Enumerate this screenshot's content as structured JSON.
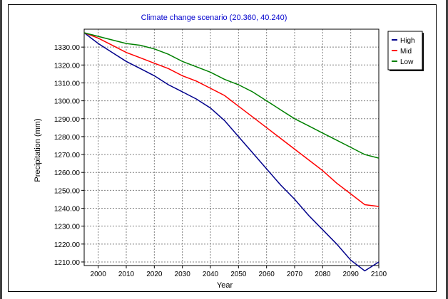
{
  "chart_data": {
    "type": "line",
    "title": "Climate change scenario (20.360, 40.240)",
    "xlabel": "Year",
    "ylabel": "Precipitation (mm)",
    "xlim": [
      1995,
      2100
    ],
    "ylim": [
      1208,
      1340
    ],
    "x_ticks": [
      2000,
      2010,
      2020,
      2030,
      2040,
      2050,
      2060,
      2070,
      2080,
      2090,
      2100
    ],
    "y_ticks": [
      1210,
      1220,
      1230,
      1240,
      1250,
      1260,
      1270,
      1280,
      1290,
      1300,
      1310,
      1320,
      1330
    ],
    "x_tick_labels": [
      "2000",
      "2010",
      "2020",
      "2030",
      "2040",
      "2050",
      "2060",
      "2070",
      "2080",
      "2090",
      "2100"
    ],
    "y_tick_labels": [
      "1210.00",
      "1220.00",
      "1230.00",
      "1240.00",
      "1250.00",
      "1260.00",
      "1270.00",
      "1280.00",
      "1290.00",
      "1300.00",
      "1310.00",
      "1320.00",
      "1330.00"
    ],
    "grid": true,
    "legend_position": "top-right",
    "x": [
      1995,
      2000,
      2005,
      2010,
      2015,
      2020,
      2025,
      2030,
      2035,
      2040,
      2045,
      2050,
      2055,
      2060,
      2065,
      2070,
      2075,
      2080,
      2085,
      2090,
      2095,
      2100
    ],
    "series": [
      {
        "name": "High",
        "color": "#00008b",
        "values": [
          1338,
          1332,
          1327,
          1322,
          1318,
          1314,
          1309,
          1305,
          1301,
          1296,
          1289,
          1280,
          1271,
          1262,
          1253,
          1245,
          1236,
          1228,
          1220,
          1211,
          1205,
          1210
        ]
      },
      {
        "name": "Mid",
        "color": "#ff0000",
        "values": [
          1338,
          1335,
          1331,
          1327,
          1324,
          1321,
          1318,
          1314,
          1311,
          1307,
          1303,
          1297,
          1291,
          1285,
          1279,
          1273,
          1267,
          1261,
          1254,
          1248,
          1242,
          1241
        ]
      },
      {
        "name": "Low",
        "color": "#008000",
        "values": [
          1338,
          1336,
          1334,
          1332,
          1331,
          1329,
          1326,
          1322,
          1319,
          1316,
          1312,
          1309,
          1305,
          1300,
          1295,
          1290,
          1286,
          1282,
          1278,
          1274,
          1270,
          1268
        ]
      }
    ]
  }
}
